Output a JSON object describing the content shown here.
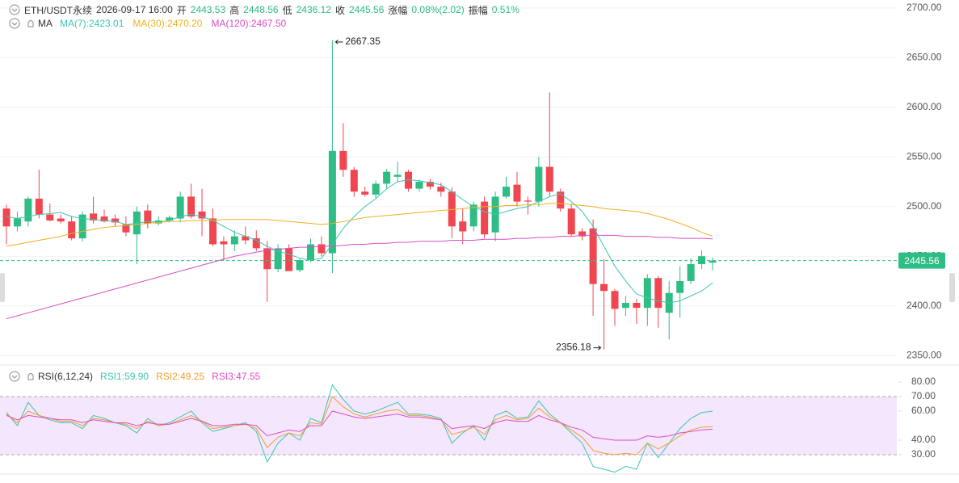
{
  "header": {
    "symbol": "ETH/USDT永续",
    "time": "2026-09-17 16:00",
    "labels": [
      "开",
      "高",
      "低",
      "收"
    ],
    "change_label": "涨幅",
    "change": "0.08%(2.02)",
    "amplitude_label": "振幅",
    "amplitude": "0.51%"
  },
  "chart_data": [
    {
      "type": "candlestick",
      "up_color": "#2ebd85",
      "down_color": "#f0464f",
      "grid": true,
      "ylim": [
        2342,
        2708
      ],
      "yticks": [
        {
          "value": 2350,
          "label": "2350.00"
        },
        {
          "value": 2400,
          "label": "2400.00"
        },
        {
          "value": 2450,
          "label": "2450.00"
        },
        {
          "value": 2500,
          "label": "2500.00"
        },
        {
          "value": 2550,
          "label": "2550.00"
        },
        {
          "value": 2600,
          "label": "2600.00"
        },
        {
          "value": 2650,
          "label": "2650.00"
        },
        {
          "value": 2700,
          "label": "2700.00"
        }
      ],
      "open": [
        2498,
        2480,
        2485,
        2508,
        2492,
        2488,
        2485,
        2468,
        2493,
        2490,
        2488,
        2482,
        2472,
        2496,
        2483,
        2486,
        2488,
        2510,
        2495,
        2488,
        2465,
        2462,
        2470,
        2468,
        2458,
        2437,
        2458,
        2436,
        2446,
        2462,
        2453,
        2556,
        2537,
        2515,
        2512,
        2523,
        2530,
        2535,
        2518,
        2525,
        2520,
        2515,
        2485,
        2480,
        2505,
        2474,
        2510,
        2522,
        2506,
        2505,
        2540,
        2515,
        2498,
        2475,
        2478,
        2422,
        2415,
        2398,
        2403,
        2398,
        2428,
        2393,
        2413,
        2425,
        2442,
        2443.53
      ],
      "high": [
        2502,
        2495,
        2510,
        2537,
        2503,
        2492,
        2490,
        2495,
        2510,
        2497,
        2492,
        2490,
        2500,
        2502,
        2490,
        2491,
        2515,
        2523,
        2518,
        2498,
        2470,
        2476,
        2480,
        2476,
        2465,
        2462,
        2462,
        2448,
        2468,
        2470,
        2667.35,
        2584,
        2540,
        2520,
        2526,
        2538,
        2545,
        2537,
        2527,
        2528,
        2524,
        2519,
        2498,
        2505,
        2510,
        2515,
        2530,
        2535,
        2510,
        2550,
        2615,
        2518,
        2503,
        2478,
        2487,
        2447,
        2417,
        2410,
        2407,
        2432,
        2430,
        2425,
        2440,
        2448,
        2456,
        2448.56
      ],
      "low": [
        2462,
        2475,
        2480,
        2488,
        2485,
        2483,
        2466,
        2465,
        2483,
        2484,
        2480,
        2470,
        2442,
        2478,
        2481,
        2484,
        2484,
        2488,
        2470,
        2460,
        2446,
        2455,
        2462,
        2455,
        2404,
        2434,
        2435,
        2434,
        2444,
        2450,
        2433,
        2530,
        2510,
        2510,
        2508,
        2518,
        2525,
        2515,
        2515,
        2517,
        2510,
        2468,
        2462,
        2475,
        2468,
        2465,
        2508,
        2500,
        2492,
        2500,
        2510,
        2495,
        2470,
        2466,
        2390,
        2356.18,
        2380,
        2390,
        2382,
        2380,
        2378,
        2366,
        2388,
        2422,
        2437,
        2436.12
      ],
      "close": [
        2480,
        2488,
        2508,
        2492,
        2486,
        2485,
        2468,
        2492,
        2486,
        2485,
        2484,
        2474,
        2495,
        2483,
        2486,
        2489,
        2510,
        2490,
        2488,
        2462,
        2462,
        2470,
        2466,
        2458,
        2437,
        2458,
        2435,
        2446,
        2462,
        2453,
        2556,
        2537,
        2515,
        2512,
        2523,
        2535,
        2532,
        2518,
        2525,
        2520,
        2515,
        2480,
        2475,
        2502,
        2472,
        2510,
        2520,
        2505,
        2505,
        2540,
        2515,
        2498,
        2472,
        2470,
        2422,
        2415,
        2397,
        2403,
        2398,
        2428,
        2398,
        2413,
        2425,
        2442,
        2450,
        2445.56
      ],
      "ma_title": "MA",
      "series": [
        {
          "name": "MA(7):",
          "color": "#3cc6b0",
          "current_label": "2423.01",
          "values": [
            2490,
            2488,
            2490,
            2492,
            2493,
            2494,
            2490,
            2488,
            2487,
            2486,
            2485,
            2482,
            2483,
            2485,
            2484,
            2486,
            2490,
            2492,
            2490,
            2486,
            2480,
            2474,
            2470,
            2466,
            2460,
            2455,
            2452,
            2448,
            2446,
            2448,
            2462,
            2478,
            2490,
            2500,
            2508,
            2518,
            2525,
            2527,
            2526,
            2524,
            2522,
            2515,
            2507,
            2500,
            2495,
            2492,
            2495,
            2498,
            2500,
            2505,
            2510,
            2513,
            2505,
            2495,
            2480,
            2460,
            2440,
            2425,
            2412,
            2408,
            2405,
            2403,
            2405,
            2410,
            2415,
            2423.01
          ]
        },
        {
          "name": "MA(30):",
          "color": "#f0b020",
          "current_label": "2470.20",
          "values": [
            2460,
            2462,
            2464,
            2466,
            2468,
            2470,
            2473,
            2475,
            2477,
            2479,
            2480,
            2481,
            2482,
            2483,
            2484,
            2485,
            2485,
            2486,
            2486,
            2486,
            2487,
            2487,
            2487,
            2487,
            2487,
            2486,
            2485,
            2484,
            2483,
            2482,
            2483,
            2485,
            2487,
            2489,
            2490,
            2491,
            2492,
            2493,
            2494,
            2495,
            2496,
            2497,
            2498,
            2499,
            2500,
            2500,
            2501,
            2501,
            2502,
            2502,
            2503,
            2503,
            2502,
            2501,
            2500,
            2498,
            2497,
            2496,
            2495,
            2493,
            2490,
            2487,
            2483,
            2479,
            2474,
            2470.2
          ]
        },
        {
          "name": "MA(120):",
          "color": "#d94fc3",
          "current_label": "2467.50",
          "values": [
            2387,
            2390,
            2393,
            2396,
            2399,
            2402,
            2405,
            2408,
            2411,
            2414,
            2417,
            2420,
            2423,
            2426,
            2429,
            2432,
            2435,
            2438,
            2441,
            2444,
            2447,
            2450,
            2452,
            2454,
            2456,
            2457,
            2458,
            2459,
            2459,
            2460,
            2460,
            2461,
            2462,
            2462,
            2463,
            2463,
            2464,
            2464,
            2465,
            2465,
            2465,
            2466,
            2466,
            2466,
            2467,
            2467,
            2467,
            2468,
            2468,
            2469,
            2469,
            2470,
            2470,
            2471,
            2471,
            2471,
            2471,
            2470,
            2470,
            2470,
            2469,
            2469,
            2468,
            2468,
            2468,
            2467.5
          ]
        }
      ]
    },
    {
      "type": "line",
      "title": "RSI(6,12,24)",
      "ylim": [
        17.8,
        87.2
      ],
      "band": [
        30,
        70
      ],
      "band_color": "#f3e6fd",
      "yticks": [
        {
          "value": 30,
          "label": "30.00"
        },
        {
          "value": 40,
          "label": "40.00"
        },
        {
          "value": 60,
          "label": "60.00"
        },
        {
          "value": 70,
          "label": "70.00"
        },
        {
          "value": 80,
          "label": "80.00"
        }
      ],
      "series": [
        {
          "name": "RSI1:",
          "color": "#3cc6b0",
          "current_label": "59.90",
          "values": [
            59,
            50,
            66,
            57,
            54,
            52,
            52,
            48,
            57,
            55,
            52,
            50,
            45,
            55,
            50,
            52,
            56,
            60,
            52,
            46,
            48,
            50,
            52,
            46,
            25,
            38,
            45,
            40,
            55,
            52,
            78,
            68,
            60,
            58,
            60,
            63,
            66,
            58,
            58,
            57,
            55,
            38,
            45,
            50,
            40,
            57,
            60,
            55,
            56,
            67,
            58,
            52,
            45,
            38,
            22,
            20,
            18,
            22,
            20,
            38,
            28,
            38,
            48,
            55,
            59,
            59.9
          ]
        },
        {
          "name": "RSI2:",
          "color": "#f0a030",
          "current_label": "49.25",
          "values": [
            58,
            52,
            60,
            57,
            55,
            53,
            53,
            50,
            55,
            54,
            52,
            51,
            48,
            53,
            50,
            51,
            54,
            57,
            53,
            48,
            49,
            50,
            51,
            48,
            35,
            42,
            45,
            43,
            52,
            51,
            70,
            63,
            58,
            56,
            58,
            60,
            61,
            57,
            57,
            56,
            54,
            44,
            46,
            49,
            44,
            54,
            57,
            54,
            55,
            62,
            56,
            52,
            47,
            42,
            33,
            31,
            30,
            31,
            30,
            38,
            34,
            38,
            43,
            47,
            49,
            49.25
          ]
        },
        {
          "name": "RSI3:",
          "color": "#d94fc3",
          "current_label": "47.55",
          "values": [
            57,
            54,
            57,
            56,
            55,
            54,
            54,
            52,
            54,
            53,
            52,
            52,
            50,
            52,
            51,
            51,
            53,
            55,
            53,
            50,
            50,
            51,
            51,
            50,
            43,
            45,
            47,
            46,
            50,
            50,
            60,
            58,
            56,
            55,
            56,
            57,
            58,
            56,
            56,
            55,
            54,
            48,
            49,
            50,
            48,
            52,
            54,
            53,
            53,
            57,
            54,
            52,
            49,
            47,
            42,
            41,
            40,
            40,
            40,
            43,
            42,
            43,
            45,
            46,
            47,
            47.55
          ]
        }
      ]
    }
  ]
}
